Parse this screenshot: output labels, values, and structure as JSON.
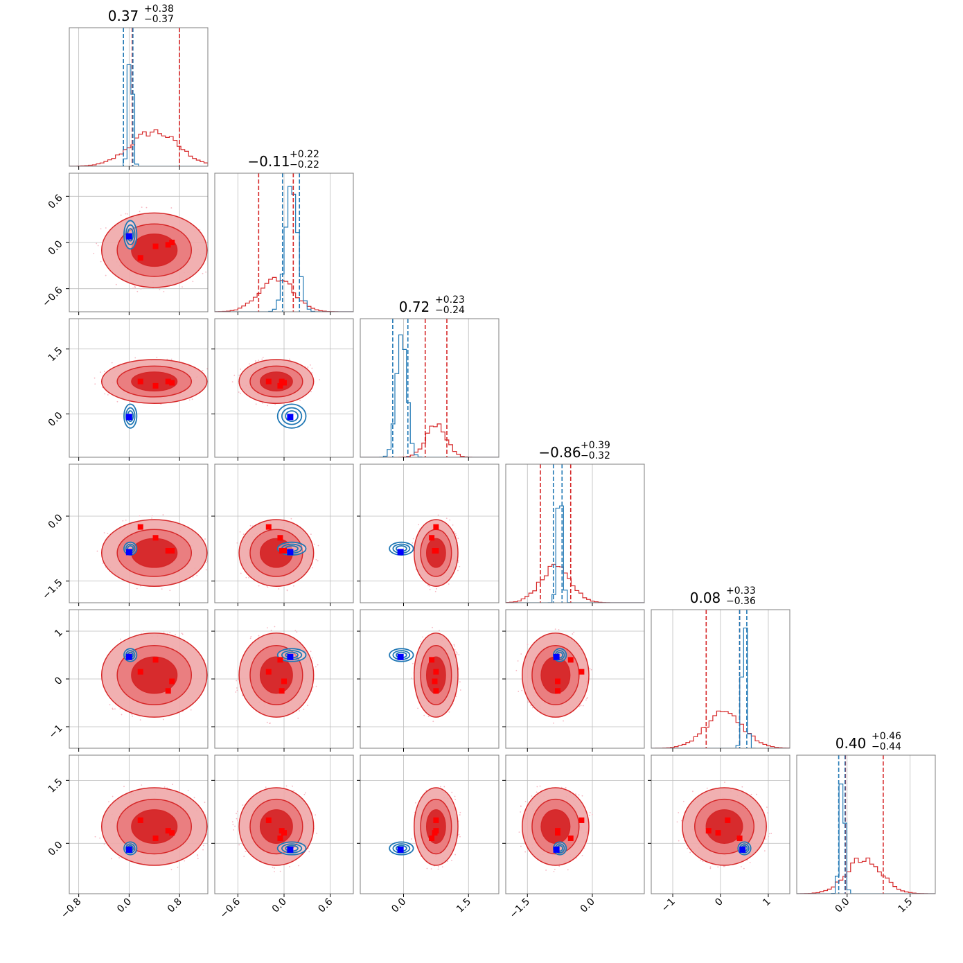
{
  "chart_data": {
    "type": "corner",
    "n_params": 6,
    "colors": {
      "blue": "#1f77b4",
      "blue_fill": "#a9c8e6",
      "red": "#d62728",
      "red_light": "#f0a7a8",
      "red_mid": "#e9797b",
      "marker_red": "#ff0000",
      "marker_blue": "#0000ff",
      "grid": "#bbbbbb",
      "scatter_red": "#f6b8c3"
    },
    "params": [
      {
        "title_value": "0.37",
        "title_plus": "+0.38",
        "title_minus": "−0.37",
        "range": [
          -0.95,
          1.25
        ],
        "ticks": [
          -0.8,
          0.0,
          0.8
        ],
        "tick_labels": [
          "−0.8",
          "0.0",
          "0.8"
        ],
        "blue": {
          "mean": 0.02,
          "sd": 0.035,
          "q": [
            -0.09,
            0.06
          ]
        },
        "red": {
          "mean": 0.4,
          "sd": 0.38,
          "q": [
            0.05,
            0.8
          ]
        },
        "markers_red": [
          0.18,
          0.42,
          0.68,
          0.62
        ],
        "marker_blue": 0.0
      },
      {
        "title_value": "−0.11",
        "title_plus": "+0.22",
        "title_minus": "−0.22",
        "range": [
          -0.9,
          0.9
        ],
        "ticks": [
          -0.6,
          0.0,
          0.6
        ],
        "tick_labels": [
          "−0.6",
          "0.0",
          "0.6"
        ],
        "blue": {
          "mean": 0.1,
          "sd": 0.08,
          "q": [
            -0.02,
            0.2
          ]
        },
        "red": {
          "mean": -0.1,
          "sd": 0.22,
          "q": [
            -0.33,
            0.12
          ]
        },
        "markers_red": [
          -0.2,
          -0.05,
          0.0,
          -0.03
        ],
        "marker_blue": 0.08
      },
      {
        "title_value": "0.72",
        "title_plus": "+0.23",
        "title_minus": "−0.24",
        "range": [
          -1.0,
          2.2
        ],
        "ticks": [
          0.0,
          1.5
        ],
        "tick_labels": [
          "0.0",
          "1.5"
        ],
        "blue": {
          "mean": -0.05,
          "sd": 0.12,
          "q": [
            -0.25,
            0.1
          ]
        },
        "red": {
          "mean": 0.75,
          "sd": 0.23,
          "q": [
            0.5,
            1.0
          ]
        },
        "markers_red": [
          0.75,
          0.65,
          0.72,
          0.75
        ],
        "marker_blue": -0.07
      },
      {
        "title_value": "−0.86",
        "title_plus": "+0.39",
        "title_minus": "−0.32",
        "range": [
          -2.0,
          1.2
        ],
        "ticks": [
          -1.5,
          0.0
        ],
        "tick_labels": [
          "−1.5",
          "0.0"
        ],
        "blue": {
          "mean": -0.75,
          "sd": 0.06,
          "q": [
            -0.9,
            -0.7
          ]
        },
        "red": {
          "mean": -0.85,
          "sd": 0.35,
          "q": [
            -1.2,
            -0.5
          ]
        },
        "markers_red": [
          -0.25,
          -0.5,
          -0.8,
          -0.8
        ],
        "marker_blue": -0.83
      },
      {
        "title_value": "0.08",
        "title_plus": "+0.33",
        "title_minus": "−0.36",
        "range": [
          -1.45,
          1.45
        ],
        "ticks": [
          -1,
          0,
          1
        ],
        "tick_labels": [
          "−1",
          "0",
          "1"
        ],
        "blue": {
          "mean": 0.5,
          "sd": 0.05,
          "q": [
            0.4,
            0.55
          ]
        },
        "red": {
          "mean": 0.08,
          "sd": 0.4,
          "q": [
            -0.3,
            0.4
          ]
        },
        "markers_red": [
          0.15,
          0.4,
          -0.05,
          -0.25
        ],
        "marker_blue": 0.46
      },
      {
        "title_value": "0.40",
        "title_plus": "+0.46",
        "title_minus": "−0.44",
        "range": [
          -1.2,
          2.1
        ],
        "ticks": [
          0.0,
          1.5
        ],
        "tick_labels": [
          "0.0",
          "1.5"
        ],
        "blue": {
          "mean": -0.12,
          "sd": 0.06,
          "q": [
            -0.2,
            -0.05
          ]
        },
        "red": {
          "mean": 0.4,
          "sd": 0.42,
          "q": [
            -0.04,
            0.86
          ]
        },
        "markers_red": [
          0.55,
          0.12,
          0.25,
          0.3
        ],
        "marker_blue": -0.15
      }
    ]
  }
}
